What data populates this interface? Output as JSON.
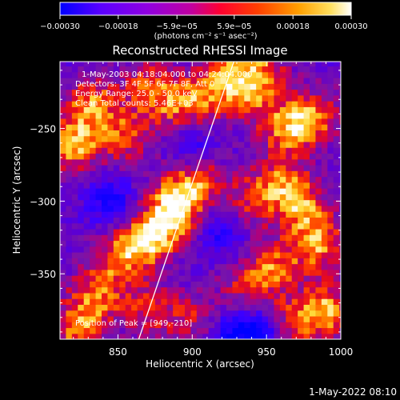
{
  "chart_data": {
    "type": "heatmap",
    "title": "Reconstructed RHESSI Image",
    "xlabel": "Heliocentric X (arcsec)",
    "ylabel": "Heliocentric Y (arcsec)",
    "xlim": [
      811,
      1000
    ],
    "ylim": [
      -395,
      -204
    ],
    "x_ticks": [
      850,
      900,
      950,
      1000
    ],
    "x_tick_labels": [
      "850",
      "900",
      "950",
      "1000"
    ],
    "y_ticks": [
      -250,
      -300,
      -350
    ],
    "y_tick_labels": [
      "−250",
      "−300",
      "−350"
    ],
    "colorbar": {
      "range": [
        -0.0003,
        0.0003
      ],
      "ticks": [
        -0.0003,
        -0.00018,
        -5.9e-05,
        5.9e-05,
        0.00018,
        0.0003
      ],
      "tick_labels": [
        "−0.00030",
        "−0.00018",
        "−5.9e−05",
        "5.9e−05",
        "0.00018",
        "0.00030"
      ],
      "unit_label": "(photons cm⁻² s⁻¹ asec⁻²)",
      "colormap": [
        "#0000ff",
        "#5a00ff",
        "#b000d0",
        "#e00060",
        "#ff2000",
        "#ff8000",
        "#ffd000",
        "#ffffff"
      ]
    },
    "annotations": [
      "1-May-2003 04:18:04.000 to 04:24:04.000",
      "Detectors: 3F 4F 5F 6F 7F 8F, Att 0",
      "Energy Range: 25.0 - 50.0 keV",
      "Clean    Total counts: 5.46E+03"
    ],
    "peak_label": "Position of Peak = [949,-210]",
    "peak": [
      949,
      -210
    ],
    "limb_line": {
      "x": [
        864,
        928
      ],
      "y": [
        -395,
        -204
      ]
    },
    "hot_regions": [
      {
        "x": 820,
        "y": -260,
        "level": 1.0
      },
      {
        "x": 832,
        "y": -232,
        "level": 0.8
      },
      {
        "x": 855,
        "y": -255,
        "level": 0.7
      },
      {
        "x": 870,
        "y": -220,
        "level": 0.6
      },
      {
        "x": 885,
        "y": -235,
        "level": 0.5
      },
      {
        "x": 905,
        "y": -230,
        "level": 0.7
      },
      {
        "x": 925,
        "y": -212,
        "level": 0.8
      },
      {
        "x": 890,
        "y": -300,
        "level": 0.95
      },
      {
        "x": 880,
        "y": -318,
        "level": 0.85
      },
      {
        "x": 865,
        "y": -330,
        "level": 0.7
      },
      {
        "x": 905,
        "y": -285,
        "level": 0.6
      },
      {
        "x": 850,
        "y": -340,
        "level": 0.6
      },
      {
        "x": 835,
        "y": -365,
        "level": 0.75
      },
      {
        "x": 822,
        "y": -388,
        "level": 0.8
      },
      {
        "x": 870,
        "y": -375,
        "level": 0.6
      },
      {
        "x": 900,
        "y": -380,
        "level": 0.5
      },
      {
        "x": 940,
        "y": -230,
        "level": 0.55
      },
      {
        "x": 949,
        "y": -210,
        "level": 0.6
      },
      {
        "x": 965,
        "y": -250,
        "level": 0.9
      },
      {
        "x": 985,
        "y": -240,
        "level": 0.7
      },
      {
        "x": 960,
        "y": -285,
        "level": 0.7
      },
      {
        "x": 975,
        "y": -305,
        "level": 0.8
      },
      {
        "x": 940,
        "y": -300,
        "level": 0.6
      },
      {
        "x": 985,
        "y": -330,
        "level": 0.85
      },
      {
        "x": 955,
        "y": -345,
        "level": 0.75
      },
      {
        "x": 935,
        "y": -360,
        "level": 0.5
      },
      {
        "x": 990,
        "y": -375,
        "level": 0.95
      },
      {
        "x": 965,
        "y": -385,
        "level": 0.7
      }
    ],
    "cold_regions": [
      {
        "x": 845,
        "y": -300,
        "level": 0.7
      },
      {
        "x": 920,
        "y": -320,
        "level": 0.6
      },
      {
        "x": 930,
        "y": -390,
        "level": 0.9
      },
      {
        "x": 950,
        "y": -390,
        "level": 0.8
      },
      {
        "x": 900,
        "y": -260,
        "level": 0.5
      }
    ]
  },
  "footer": {
    "timestamp": "1-May-2022 08:10"
  }
}
